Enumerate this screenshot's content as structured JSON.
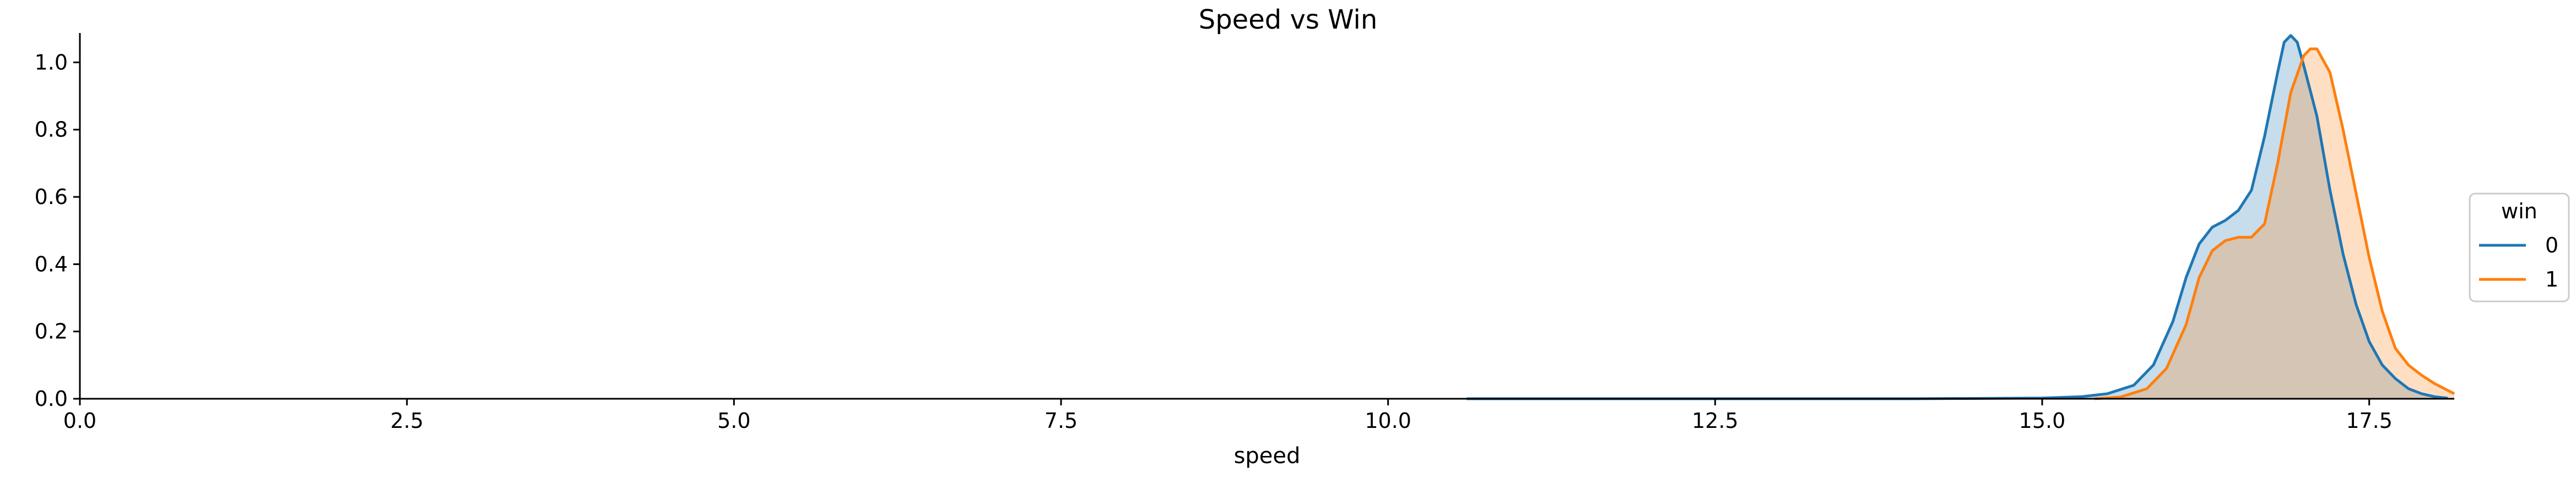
{
  "chart_data": {
    "type": "area",
    "title": "Speed vs Win",
    "xlabel": "speed",
    "ylabel": "",
    "xlim": [
      0,
      18.15
    ],
    "ylim": [
      0,
      1.12
    ],
    "xticks": [
      0.0,
      2.5,
      5.0,
      7.5,
      10.0,
      12.5,
      15.0,
      17.5
    ],
    "xtick_labels": [
      "0.0",
      "2.5",
      "5.0",
      "7.5",
      "10.0",
      "12.5",
      "15.0",
      "17.5"
    ],
    "yticks": [
      0.0,
      0.2,
      0.4,
      0.6,
      0.8,
      1.0
    ],
    "ytick_labels": [
      "0.0",
      "0.2",
      "0.4",
      "0.6",
      "0.8",
      "1.0"
    ],
    "grid": false,
    "legend": {
      "title": "win",
      "placement": "center-right"
    },
    "series": [
      {
        "name": "0",
        "color": "#1f77b4",
        "fill": "#c5d9ec",
        "points": [
          [
            10.6,
            0.0
          ],
          [
            12.0,
            0.0
          ],
          [
            14.0,
            0.0
          ],
          [
            15.0,
            0.002
          ],
          [
            15.3,
            0.006
          ],
          [
            15.5,
            0.015
          ],
          [
            15.7,
            0.04
          ],
          [
            15.85,
            0.1
          ],
          [
            16.0,
            0.23
          ],
          [
            16.1,
            0.36
          ],
          [
            16.2,
            0.46
          ],
          [
            16.3,
            0.51
          ],
          [
            16.4,
            0.53
          ],
          [
            16.5,
            0.56
          ],
          [
            16.6,
            0.62
          ],
          [
            16.7,
            0.78
          ],
          [
            16.8,
            0.97
          ],
          [
            16.85,
            1.06
          ],
          [
            16.9,
            1.08
          ],
          [
            16.95,
            1.06
          ],
          [
            17.0,
            0.99
          ],
          [
            17.1,
            0.84
          ],
          [
            17.2,
            0.62
          ],
          [
            17.3,
            0.43
          ],
          [
            17.4,
            0.28
          ],
          [
            17.5,
            0.17
          ],
          [
            17.6,
            0.1
          ],
          [
            17.7,
            0.06
          ],
          [
            17.8,
            0.03
          ],
          [
            17.9,
            0.015
          ],
          [
            18.0,
            0.006
          ],
          [
            18.1,
            0.002
          ]
        ]
      },
      {
        "name": "1",
        "color": "#ff7f0e",
        "fill": "#f9d3b3",
        "points": [
          [
            15.4,
            0.0
          ],
          [
            15.6,
            0.005
          ],
          [
            15.8,
            0.03
          ],
          [
            15.95,
            0.09
          ],
          [
            16.1,
            0.22
          ],
          [
            16.2,
            0.36
          ],
          [
            16.3,
            0.44
          ],
          [
            16.4,
            0.47
          ],
          [
            16.5,
            0.48
          ],
          [
            16.6,
            0.48
          ],
          [
            16.7,
            0.52
          ],
          [
            16.8,
            0.7
          ],
          [
            16.9,
            0.91
          ],
          [
            17.0,
            1.02
          ],
          [
            17.05,
            1.04
          ],
          [
            17.1,
            1.04
          ],
          [
            17.2,
            0.97
          ],
          [
            17.3,
            0.8
          ],
          [
            17.4,
            0.61
          ],
          [
            17.5,
            0.42
          ],
          [
            17.6,
            0.26
          ],
          [
            17.7,
            0.15
          ],
          [
            17.8,
            0.1
          ],
          [
            17.9,
            0.07
          ],
          [
            18.0,
            0.045
          ],
          [
            18.1,
            0.025
          ],
          [
            18.15,
            0.015
          ]
        ]
      }
    ]
  }
}
